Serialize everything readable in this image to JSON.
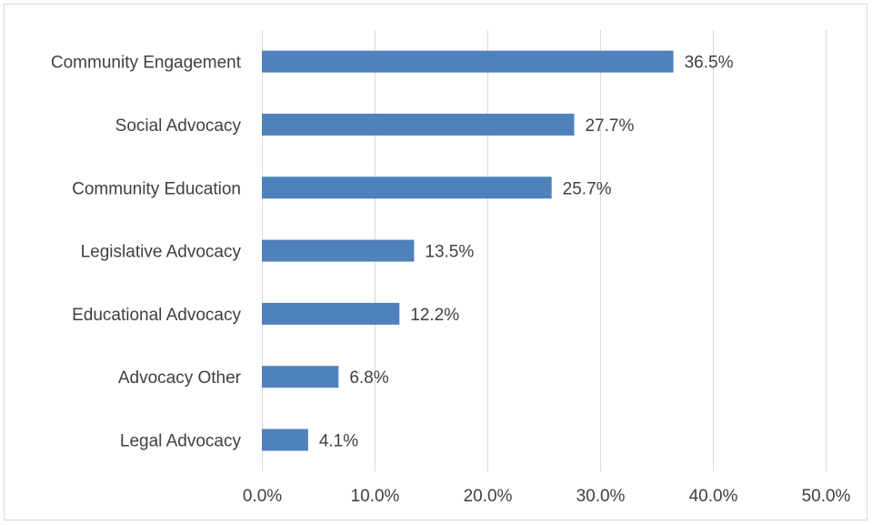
{
  "chart_data": {
    "type": "bar",
    "orientation": "horizontal",
    "categories": [
      "Community Engagement",
      "Social Advocacy",
      "Community Education",
      "Legislative Advocacy",
      "Educational Advocacy",
      "Advocacy Other",
      "Legal Advocacy"
    ],
    "values": [
      36.5,
      27.7,
      25.7,
      13.5,
      12.2,
      6.8,
      4.1
    ],
    "value_labels": [
      "36.5%",
      "27.7%",
      "25.7%",
      "13.5%",
      "12.2%",
      "6.8%",
      "4.1%"
    ],
    "x_ticks": [
      "0.0%",
      "10.0%",
      "20.0%",
      "30.0%",
      "40.0%",
      "50.0%"
    ],
    "xlim": [
      0,
      50
    ],
    "title": "",
    "xlabel": "",
    "ylabel": "",
    "grid": "vertical",
    "legend": "none",
    "bar_color": "#4f81bd",
    "grid_color": "#d9d9d9",
    "text_color": "#404040"
  }
}
